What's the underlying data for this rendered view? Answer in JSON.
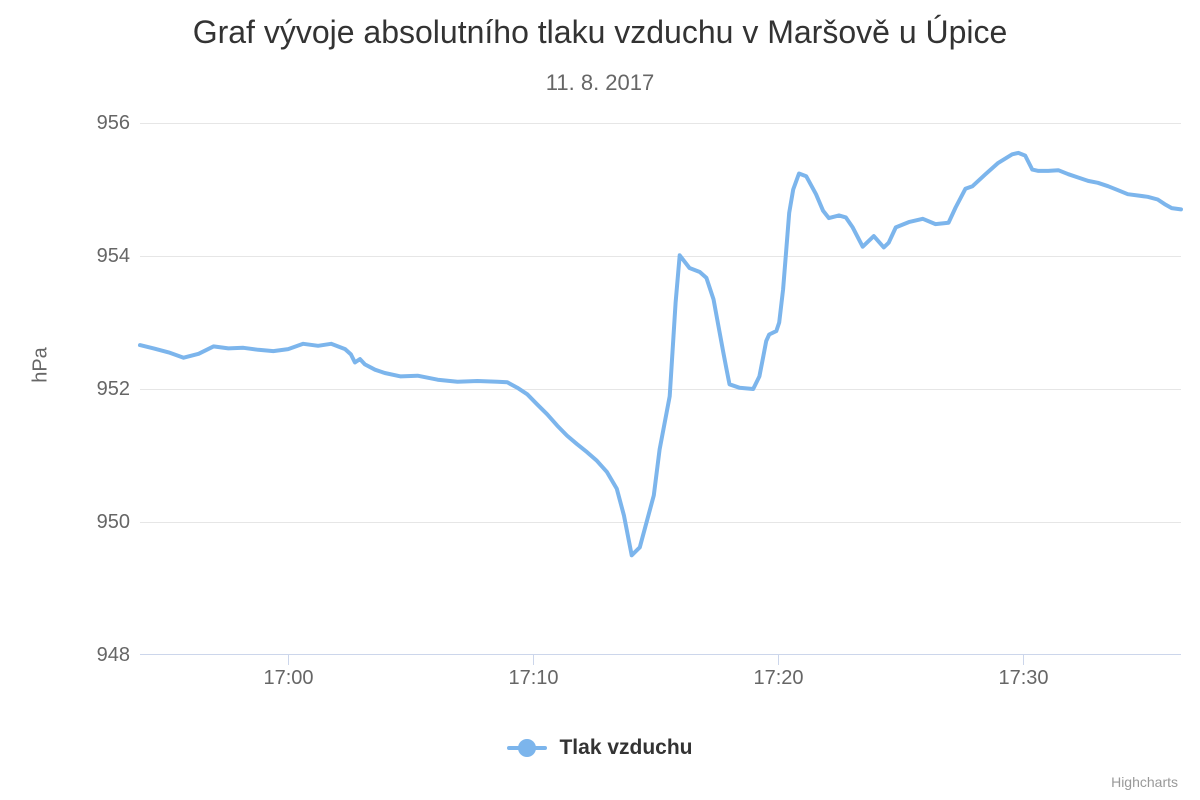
{
  "credits": "Highcharts",
  "chart_data": {
    "type": "line",
    "title": "Graf vývoje absolutního tlaku vzduchu v Maršově u Úpice",
    "subtitle": "11. 8. 2017",
    "ylabel": "hPa",
    "xlabel": "",
    "grid": "horizontal gridlines on, legend bottom-center, credits bottom-right",
    "ylim": [
      948,
      956
    ],
    "x_unit": "minutes relative to 17:00",
    "xlim_minutes": [
      -6.05,
      36.44
    ],
    "yticks": [
      {
        "label": "956",
        "value": 956
      },
      {
        "label": "954",
        "value": 954
      },
      {
        "label": "952",
        "value": 952
      },
      {
        "label": "950",
        "value": 950
      },
      {
        "label": "948",
        "value": 948
      }
    ],
    "xticks": [
      {
        "label": "17:00",
        "minutes": 0
      },
      {
        "label": "17:10",
        "minutes": 10
      },
      {
        "label": "17:20",
        "minutes": 20
      },
      {
        "label": "17:30",
        "minutes": 30
      }
    ],
    "colors": {
      "series": "#7cb5ec",
      "grid": "#e6e6e6",
      "axis_line": "#ccd6eb",
      "title_text": "#333333",
      "muted_text": "#666666",
      "credits_text": "#999999"
    },
    "series": [
      {
        "name": "Tlak vzduchu",
        "color": "#7cb5ec",
        "points": [
          [
            -6.05,
            952.66
          ],
          [
            -5.49,
            952.61
          ],
          [
            -4.88,
            952.55
          ],
          [
            -4.27,
            952.47
          ],
          [
            -3.66,
            952.53
          ],
          [
            -3.05,
            952.64
          ],
          [
            -2.44,
            952.61
          ],
          [
            -1.83,
            952.62
          ],
          [
            -1.22,
            952.59
          ],
          [
            -0.61,
            952.57
          ],
          [
            0,
            952.6
          ],
          [
            0.61,
            952.68
          ],
          [
            1.22,
            952.65
          ],
          [
            1.75,
            952.68
          ],
          [
            2.32,
            952.6
          ],
          [
            2.56,
            952.52
          ],
          [
            2.72,
            952.4
          ],
          [
            2.93,
            952.45
          ],
          [
            3.13,
            952.37
          ],
          [
            3.54,
            952.29
          ],
          [
            3.94,
            952.24
          ],
          [
            4.59,
            952.19
          ],
          [
            5.28,
            952.2
          ],
          [
            6.1,
            952.14
          ],
          [
            6.91,
            952.11
          ],
          [
            7.72,
            952.12
          ],
          [
            8.54,
            952.11
          ],
          [
            8.94,
            952.1
          ],
          [
            9.35,
            952.02
          ],
          [
            9.76,
            951.92
          ],
          [
            10.16,
            951.77
          ],
          [
            10.57,
            951.62
          ],
          [
            10.98,
            951.45
          ],
          [
            11.38,
            951.3
          ],
          [
            11.79,
            951.17
          ],
          [
            12.2,
            951.05
          ],
          [
            12.6,
            950.92
          ],
          [
            13.01,
            950.75
          ],
          [
            13.41,
            950.5
          ],
          [
            13.7,
            950.1
          ],
          [
            14.02,
            949.5
          ],
          [
            14.35,
            949.62
          ],
          [
            14.92,
            950.4
          ],
          [
            15.16,
            951.09
          ],
          [
            15.57,
            951.89
          ],
          [
            15.81,
            953.3
          ],
          [
            15.98,
            954.01
          ],
          [
            16.38,
            953.82
          ],
          [
            16.8,
            953.76
          ],
          [
            17.07,
            953.67
          ],
          [
            17.36,
            953.35
          ],
          [
            17.56,
            952.95
          ],
          [
            17.76,
            952.55
          ],
          [
            17.89,
            952.3
          ],
          [
            18.01,
            952.07
          ],
          [
            18.41,
            952.02
          ],
          [
            18.98,
            952.0
          ],
          [
            19.23,
            952.19
          ],
          [
            19.39,
            952.49
          ],
          [
            19.51,
            952.72
          ],
          [
            19.63,
            952.82
          ],
          [
            19.92,
            952.87
          ],
          [
            20.04,
            953.0
          ],
          [
            20.2,
            953.5
          ],
          [
            20.33,
            954.1
          ],
          [
            20.45,
            954.65
          ],
          [
            20.61,
            955.0
          ],
          [
            20.85,
            955.24
          ],
          [
            21.14,
            955.2
          ],
          [
            21.54,
            954.93
          ],
          [
            21.83,
            954.68
          ],
          [
            22.07,
            954.57
          ],
          [
            22.48,
            954.61
          ],
          [
            22.76,
            954.58
          ],
          [
            23.04,
            954.43
          ],
          [
            23.45,
            954.14
          ],
          [
            23.9,
            954.3
          ],
          [
            24.31,
            954.13
          ],
          [
            24.51,
            954.2
          ],
          [
            24.8,
            954.43
          ],
          [
            25.33,
            954.51
          ],
          [
            25.9,
            954.56
          ],
          [
            26.42,
            954.48
          ],
          [
            26.95,
            954.5
          ],
          [
            27.24,
            954.73
          ],
          [
            27.64,
            955.01
          ],
          [
            27.93,
            955.05
          ],
          [
            28.46,
            955.23
          ],
          [
            28.98,
            955.4
          ],
          [
            29.55,
            955.53
          ],
          [
            29.8,
            955.55
          ],
          [
            30.08,
            955.51
          ],
          [
            30.37,
            955.3
          ],
          [
            30.62,
            955.28
          ],
          [
            31.02,
            955.28
          ],
          [
            31.43,
            955.29
          ],
          [
            31.84,
            955.23
          ],
          [
            32.24,
            955.18
          ],
          [
            32.65,
            955.13
          ],
          [
            33.05,
            955.1
          ],
          [
            33.46,
            955.05
          ],
          [
            33.87,
            954.99
          ],
          [
            34.27,
            954.93
          ],
          [
            34.68,
            954.91
          ],
          [
            35.08,
            954.89
          ],
          [
            35.49,
            954.85
          ],
          [
            35.77,
            954.78
          ],
          [
            36.06,
            954.72
          ],
          [
            36.44,
            954.7
          ]
        ]
      }
    ]
  }
}
